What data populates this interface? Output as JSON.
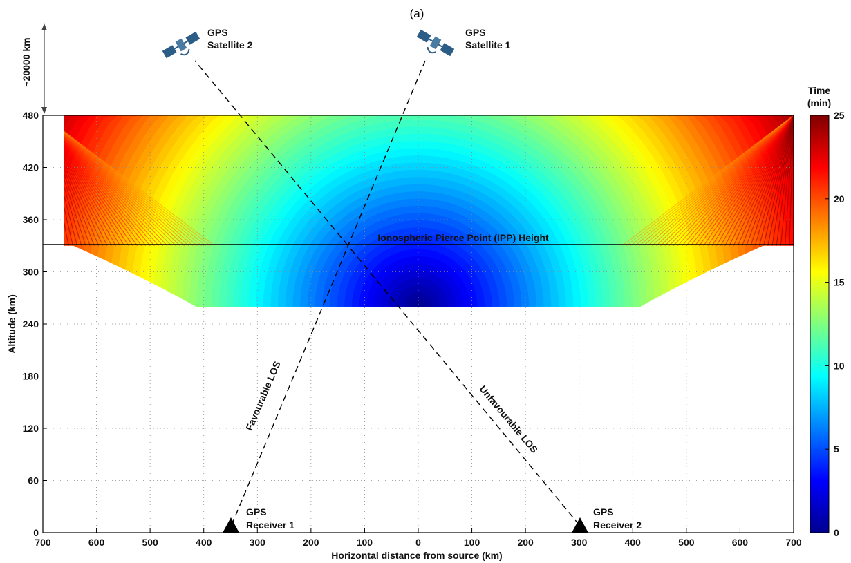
{
  "panel_label": "(a)",
  "chart_data": {
    "type": "heatmap",
    "xlabel": "Horizontal distance from source (km)",
    "ylabel": "Altitude (km)",
    "x_range": [
      -700,
      700
    ],
    "y_range": [
      0,
      480
    ],
    "x_ticks": [
      -700,
      -600,
      -500,
      -400,
      -300,
      -200,
      -100,
      0,
      100,
      200,
      300,
      400,
      500,
      600,
      700
    ],
    "x_tick_labels": [
      "700",
      "600",
      "500",
      "400",
      "300",
      "200",
      "100",
      "0",
      "100",
      "200",
      "300",
      "400",
      "500",
      "600",
      "700"
    ],
    "y_ticks": [
      0,
      60,
      120,
      180,
      240,
      300,
      360,
      420,
      480
    ],
    "y_tick_labels": [
      "0",
      "60",
      "120",
      "180",
      "240",
      "300",
      "360",
      "420",
      "480"
    ],
    "grid": true,
    "colorbar": {
      "title_line1": "Time",
      "title_line2": "(min)",
      "range": [
        0,
        25
      ],
      "ticks": [
        0,
        5,
        10,
        15,
        20,
        25
      ],
      "tick_labels": [
        "0",
        "5",
        "10",
        "15",
        "20",
        "25"
      ],
      "colormap": "jet"
    },
    "ipp_height": {
      "label": "Ionospheric Pierce Point (IPP) Height",
      "altitude_km": 330
    },
    "top_marker_label": "~20000 km",
    "receivers": [
      {
        "line1": "GPS",
        "line2": "Receiver 1",
        "x_km": -345
      },
      {
        "line1": "GPS",
        "line2": "Receiver 2",
        "x_km": 300
      }
    ],
    "satellites": [
      {
        "line1": "GPS",
        "line2": "Satellite 1",
        "icon": "satellite-icon"
      },
      {
        "line1": "GPS",
        "line2": "Satellite 2",
        "icon": "satellite-icon"
      }
    ],
    "los": [
      {
        "label": "Favourable LOS",
        "from_receiver": 1,
        "to_satellite": 1
      },
      {
        "label": "Unfavourable LOS",
        "from_receiver": 2,
        "to_satellite": 2
      }
    ]
  }
}
